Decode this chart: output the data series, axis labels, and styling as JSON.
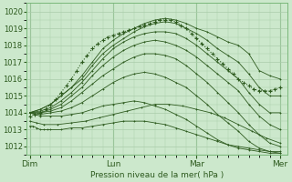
{
  "xlabel": "Pression niveau de la mer( hPa )",
  "bg_color": "#cce8cc",
  "grid_color": "#aaccaa",
  "line_color": "#2d5a1e",
  "x_tick_labels": [
    "Dim",
    "Lun",
    "Mar",
    "Mer"
  ],
  "x_tick_positions": [
    0,
    48,
    96,
    144
  ],
  "ylim": [
    1011.5,
    1020.5
  ],
  "xlim": [
    -2,
    148
  ],
  "yticks": [
    1012,
    1013,
    1014,
    1015,
    1016,
    1017,
    1018,
    1019,
    1020
  ],
  "lines": [
    {
      "x": [
        0,
        6,
        12,
        18,
        24,
        30,
        36,
        42,
        48,
        54,
        60,
        66,
        72,
        78,
        84,
        90,
        96,
        102,
        108,
        114,
        120,
        126,
        132,
        138,
        144
      ],
      "y": [
        1014.0,
        1014.2,
        1014.5,
        1015.0,
        1015.5,
        1016.2,
        1017.0,
        1017.8,
        1018.3,
        1018.7,
        1019.0,
        1019.3,
        1019.5,
        1019.6,
        1019.5,
        1019.3,
        1019.0,
        1018.8,
        1018.5,
        1018.2,
        1018.0,
        1017.5,
        1016.5,
        1016.2,
        1016.0
      ]
    },
    {
      "x": [
        0,
        6,
        12,
        18,
        24,
        30,
        36,
        42,
        48,
        54,
        60,
        66,
        72,
        78,
        84,
        90,
        96,
        102,
        108,
        114,
        120,
        126,
        132,
        138,
        144
      ],
      "y": [
        1014.0,
        1014.2,
        1014.5,
        1015.0,
        1015.5,
        1016.0,
        1016.8,
        1017.5,
        1018.0,
        1018.4,
        1018.8,
        1019.1,
        1019.3,
        1019.4,
        1019.3,
        1019.0,
        1018.7,
        1018.3,
        1017.8,
        1017.4,
        1017.0,
        1016.3,
        1015.5,
        1015.0,
        1015.0
      ]
    },
    {
      "x": [
        0,
        6,
        12,
        18,
        24,
        30,
        36,
        42,
        48,
        54,
        60,
        66,
        72,
        78,
        84,
        90,
        96,
        102,
        108,
        114,
        120,
        126,
        132,
        138,
        144
      ],
      "y": [
        1014.0,
        1014.1,
        1014.3,
        1014.7,
        1015.2,
        1015.8,
        1016.5,
        1017.2,
        1017.8,
        1018.2,
        1018.5,
        1018.7,
        1018.8,
        1018.8,
        1018.7,
        1018.4,
        1018.0,
        1017.5,
        1017.0,
        1016.5,
        1016.0,
        1015.2,
        1014.5,
        1014.0,
        1014.0
      ]
    },
    {
      "x": [
        0,
        6,
        12,
        18,
        24,
        30,
        36,
        42,
        48,
        54,
        60,
        66,
        72,
        78,
        84,
        90,
        96,
        102,
        108,
        114,
        120,
        126,
        132,
        138,
        144
      ],
      "y": [
        1014.0,
        1014.0,
        1014.2,
        1014.5,
        1015.0,
        1015.5,
        1016.2,
        1016.8,
        1017.3,
        1017.7,
        1018.0,
        1018.2,
        1018.3,
        1018.2,
        1018.0,
        1017.7,
        1017.3,
        1016.8,
        1016.3,
        1015.8,
        1015.3,
        1014.5,
        1013.8,
        1013.3,
        1013.0
      ]
    },
    {
      "x": [
        0,
        6,
        12,
        18,
        24,
        30,
        36,
        42,
        48,
        54,
        60,
        66,
        72,
        78,
        84,
        90,
        96,
        102,
        108,
        114,
        120,
        126,
        132,
        138,
        144
      ],
      "y": [
        1014.0,
        1014.0,
        1014.1,
        1014.3,
        1014.7,
        1015.2,
        1015.7,
        1016.2,
        1016.6,
        1017.0,
        1017.3,
        1017.5,
        1017.5,
        1017.4,
        1017.2,
        1016.8,
        1016.3,
        1015.8,
        1015.2,
        1014.6,
        1014.0,
        1013.3,
        1012.7,
        1012.2,
        1012.0
      ]
    },
    {
      "x": [
        0,
        6,
        12,
        18,
        24,
        30,
        36,
        42,
        48,
        54,
        60,
        66,
        72,
        78,
        84,
        90,
        96,
        102,
        108,
        114,
        120,
        126,
        132,
        138,
        144
      ],
      "y": [
        1014.0,
        1013.9,
        1014.0,
        1014.1,
        1014.3,
        1014.6,
        1015.0,
        1015.4,
        1015.8,
        1016.1,
        1016.3,
        1016.4,
        1016.3,
        1016.1,
        1015.8,
        1015.5,
        1015.0,
        1014.5,
        1013.9,
        1013.4,
        1012.9,
        1012.3,
        1011.9,
        1011.7,
        1011.6
      ]
    },
    {
      "x": [
        0,
        6,
        12,
        18,
        24,
        30,
        36,
        42,
        48,
        54,
        60,
        66,
        72,
        78,
        84,
        90,
        96,
        102,
        108,
        114,
        120,
        126,
        132,
        138,
        144
      ],
      "y": [
        1014.0,
        1013.8,
        1013.8,
        1013.8,
        1013.9,
        1014.0,
        1014.2,
        1014.4,
        1014.5,
        1014.6,
        1014.7,
        1014.6,
        1014.4,
        1014.2,
        1013.9,
        1013.6,
        1013.2,
        1012.8,
        1012.4,
        1012.1,
        1011.9,
        1011.8,
        1011.7,
        1011.6,
        1011.6
      ]
    },
    {
      "x": [
        0,
        4,
        8,
        16,
        24,
        32,
        40,
        48,
        56,
        64,
        72,
        80,
        88,
        96,
        104,
        112,
        120,
        128,
        136,
        144
      ],
      "y": [
        1013.5,
        1013.4,
        1013.3,
        1013.3,
        1013.4,
        1013.5,
        1013.7,
        1013.9,
        1014.1,
        1014.3,
        1014.5,
        1014.5,
        1014.4,
        1014.2,
        1014.0,
        1013.7,
        1013.3,
        1012.9,
        1012.5,
        1012.2
      ]
    },
    {
      "x": [
        0,
        2,
        4,
        6,
        8,
        10,
        12,
        18,
        24,
        30,
        36,
        42,
        48,
        54,
        60,
        66,
        72,
        78,
        84,
        90,
        96,
        102,
        108,
        114,
        120,
        126,
        132,
        138,
        144
      ],
      "y": [
        1013.2,
        1013.2,
        1013.1,
        1013.0,
        1013.0,
        1013.0,
        1013.0,
        1013.0,
        1013.1,
        1013.1,
        1013.2,
        1013.3,
        1013.4,
        1013.5,
        1013.5,
        1013.5,
        1013.4,
        1013.3,
        1013.1,
        1012.9,
        1012.7,
        1012.5,
        1012.3,
        1012.1,
        1012.0,
        1011.9,
        1011.8,
        1011.7,
        1011.7
      ]
    }
  ],
  "dense_line": {
    "x": [
      0,
      3,
      6,
      9,
      12,
      15,
      18,
      21,
      24,
      27,
      30,
      33,
      36,
      39,
      42,
      45,
      48,
      51,
      54,
      57,
      60,
      63,
      66,
      69,
      72,
      75,
      78,
      81,
      84,
      87,
      90,
      93,
      96,
      99,
      102,
      105,
      108,
      111,
      114,
      117,
      120,
      123,
      126,
      129,
      132,
      135,
      138,
      141,
      144
    ],
    "y": [
      1013.8,
      1013.9,
      1014.0,
      1014.2,
      1014.5,
      1014.8,
      1015.2,
      1015.6,
      1016.0,
      1016.5,
      1017.0,
      1017.4,
      1017.8,
      1018.1,
      1018.3,
      1018.5,
      1018.6,
      1018.7,
      1018.8,
      1018.9,
      1019.0,
      1019.1,
      1019.2,
      1019.3,
      1019.4,
      1019.5,
      1019.5,
      1019.5,
      1019.4,
      1019.2,
      1019.0,
      1018.7,
      1018.4,
      1018.1,
      1017.8,
      1017.5,
      1017.2,
      1016.9,
      1016.6,
      1016.3,
      1016.0,
      1015.8,
      1015.6,
      1015.4,
      1015.3,
      1015.3,
      1015.3,
      1015.4,
      1015.5
    ]
  }
}
